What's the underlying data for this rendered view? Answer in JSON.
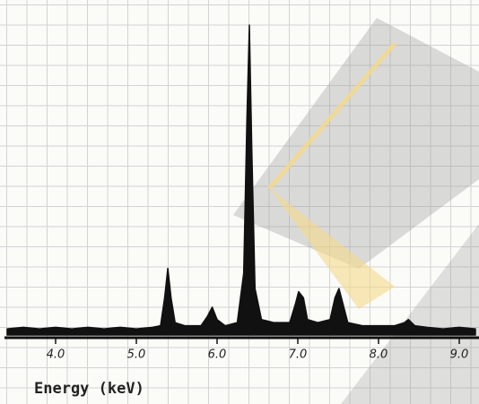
{
  "chart_data": {
    "type": "area",
    "xlabel": "Energy (keV)",
    "color": "#111111",
    "x": [
      3.4,
      3.6,
      3.8,
      4.0,
      4.2,
      4.4,
      4.6,
      4.8,
      5.0,
      5.2,
      5.3,
      5.35,
      5.39,
      5.43,
      5.48,
      5.6,
      5.8,
      5.88,
      5.94,
      6.0,
      6.1,
      6.25,
      6.33,
      6.37,
      6.4,
      6.43,
      6.47,
      6.55,
      6.7,
      6.9,
      6.97,
      7.01,
      7.07,
      7.12,
      7.25,
      7.4,
      7.46,
      7.51,
      7.56,
      7.62,
      7.8,
      8.0,
      8.2,
      8.32,
      8.37,
      8.45,
      8.6,
      8.8,
      9.0,
      9.2
    ],
    "values": [
      2,
      2.5,
      2,
      2.5,
      2,
      2.5,
      2,
      2.5,
      2,
      2.5,
      3,
      12,
      21.5,
      12,
      4,
      3,
      3,
      6,
      9,
      5,
      3,
      4,
      20,
      70,
      100,
      60,
      15,
      5,
      4,
      4,
      10,
      14,
      12,
      5,
      4,
      5,
      12,
      15,
      10,
      4,
      3,
      3,
      3,
      4,
      5,
      3,
      2.5,
      2,
      2.5,
      2
    ],
    "xlim": [
      3.4,
      9.2
    ],
    "ylim": [
      0,
      100
    ],
    "xticks": [
      {
        "value": 4,
        "label": "4.0"
      },
      {
        "value": 5,
        "label": "5.0"
      },
      {
        "value": 6,
        "label": "6.0"
      },
      {
        "value": 7,
        "label": "7.0"
      },
      {
        "value": 8,
        "label": "8.0"
      },
      {
        "value": 9,
        "label": "9.0"
      }
    ]
  }
}
